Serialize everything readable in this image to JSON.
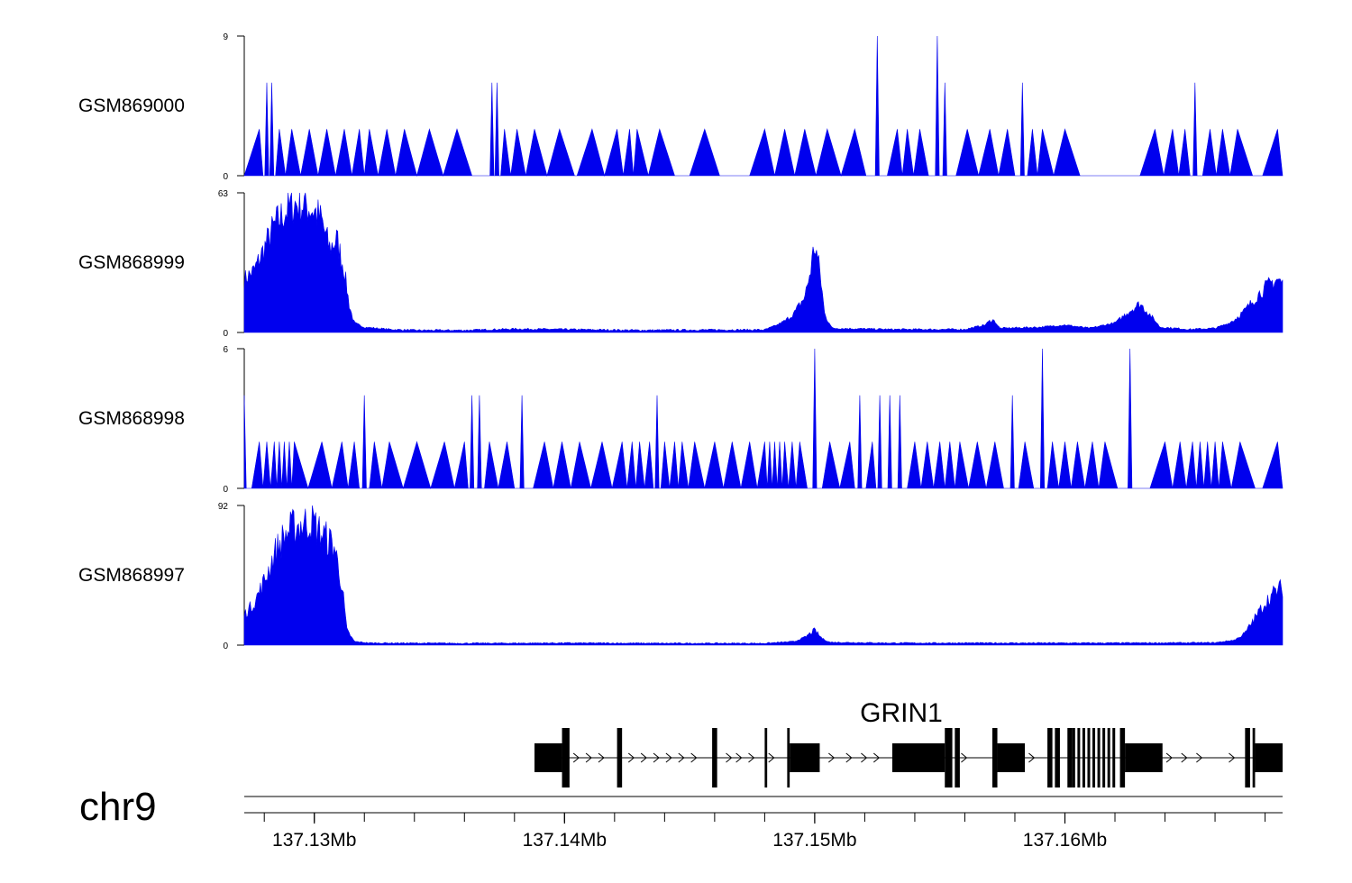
{
  "chart_data": {
    "type": "area",
    "chromosome": "chr9",
    "x_range_mb": [
      137.1272,
      137.1687
    ],
    "genome_axis": {
      "major_ticks_mb": [
        137.13,
        137.14,
        137.15,
        137.16
      ],
      "major_labels": [
        "137.13Mb",
        "137.14Mb",
        "137.15Mb",
        "137.16Mb"
      ],
      "minor_step_mb": 0.002
    },
    "color": "#0000ee",
    "tracks": [
      {
        "name": "GSM869000",
        "ymax_label": "9",
        "ymin_label": "0",
        "ymax": 9,
        "peaks": [
          [
            137.1278,
            3
          ],
          [
            137.1281,
            6
          ],
          [
            137.1283,
            6
          ],
          [
            137.1286,
            3
          ],
          [
            137.1291,
            3
          ],
          [
            137.1298,
            3
          ],
          [
            137.1305,
            3
          ],
          [
            137.1312,
            3
          ],
          [
            137.1318,
            3
          ],
          [
            137.1322,
            3
          ],
          [
            137.1329,
            3
          ],
          [
            137.1336,
            3
          ],
          [
            137.1346,
            3
          ],
          [
            137.1357,
            3
          ],
          [
            137.1371,
            6
          ],
          [
            137.1373,
            6
          ],
          [
            137.1376,
            3
          ],
          [
            137.1381,
            3
          ],
          [
            137.1388,
            3
          ],
          [
            137.1398,
            3
          ],
          [
            137.1411,
            3
          ],
          [
            137.1421,
            3
          ],
          [
            137.1426,
            3
          ],
          [
            137.1429,
            3
          ],
          [
            137.1438,
            3
          ],
          [
            137.1456,
            3
          ],
          [
            137.148,
            3
          ],
          [
            137.1488,
            3
          ],
          [
            137.1496,
            3
          ],
          [
            137.1505,
            3
          ],
          [
            137.1516,
            3
          ],
          [
            137.1525,
            9
          ],
          [
            137.1533,
            3
          ],
          [
            137.1537,
            3
          ],
          [
            137.1542,
            3
          ],
          [
            137.1549,
            9
          ],
          [
            137.1552,
            6
          ],
          [
            137.1561,
            3
          ],
          [
            137.157,
            3
          ],
          [
            137.1577,
            3
          ],
          [
            137.1583,
            6
          ],
          [
            137.1587,
            3
          ],
          [
            137.1591,
            3
          ],
          [
            137.16,
            3
          ],
          [
            137.1636,
            3
          ],
          [
            137.1643,
            3
          ],
          [
            137.1648,
            3
          ],
          [
            137.1652,
            6
          ],
          [
            137.1658,
            3
          ],
          [
            137.1663,
            3
          ],
          [
            137.1669,
            3
          ],
          [
            137.1685,
            3
          ]
        ],
        "hw": 0.0006
      },
      {
        "name": "GSM868999",
        "ymax_label": "63",
        "ymin_label": "0",
        "ymax": 63,
        "dense": true,
        "base": [
          [
            137.1272,
            24
          ],
          [
            137.1276,
            28
          ],
          [
            137.128,
            38
          ],
          [
            137.1284,
            48
          ],
          [
            137.1288,
            54
          ],
          [
            137.1292,
            58
          ],
          [
            137.1296,
            58
          ],
          [
            137.13,
            55
          ],
          [
            137.1303,
            50
          ],
          [
            137.1306,
            38
          ],
          [
            137.1309,
            42
          ],
          [
            137.1312,
            28
          ],
          [
            137.1314,
            12
          ],
          [
            137.1316,
            4
          ],
          [
            137.132,
            2
          ],
          [
            137.133,
            1
          ],
          [
            137.134,
            0.6
          ],
          [
            137.136,
            0.6
          ],
          [
            137.138,
            1.2
          ],
          [
            137.14,
            1
          ],
          [
            137.143,
            0.6
          ],
          [
            137.146,
            0.8
          ],
          [
            137.148,
            0.8
          ],
          [
            137.1485,
            3
          ],
          [
            137.1488,
            5
          ],
          [
            137.1492,
            9
          ],
          [
            137.1496,
            16
          ],
          [
            137.1498,
            26
          ],
          [
            137.15,
            40
          ],
          [
            137.1502,
            28
          ],
          [
            137.1504,
            8
          ],
          [
            137.1507,
            1.5
          ],
          [
            137.153,
            1
          ],
          [
            137.156,
            1
          ],
          [
            137.1568,
            3
          ],
          [
            137.1571,
            6
          ],
          [
            137.1574,
            1.5
          ],
          [
            137.159,
            2
          ],
          [
            137.16,
            3
          ],
          [
            137.161,
            1.5
          ],
          [
            137.162,
            4
          ],
          [
            137.1625,
            9
          ],
          [
            137.163,
            13
          ],
          [
            137.1634,
            8
          ],
          [
            137.1638,
            2
          ],
          [
            137.165,
            1
          ],
          [
            137.166,
            1.5
          ],
          [
            137.1666,
            4
          ],
          [
            137.1672,
            10
          ],
          [
            137.1678,
            18
          ],
          [
            137.1682,
            22
          ],
          [
            137.1685,
            24
          ],
          [
            137.1687,
            22
          ]
        ]
      },
      {
        "name": "GSM868998",
        "ymax_label": "6",
        "ymin_label": "0",
        "ymax": 6,
        "peaks": [
          [
            137.1272,
            4
          ],
          [
            137.1278,
            2
          ],
          [
            137.1281,
            2
          ],
          [
            137.1284,
            2
          ],
          [
            137.1286,
            2
          ],
          [
            137.1288,
            2
          ],
          [
            137.129,
            2
          ],
          [
            137.1292,
            2
          ],
          [
            137.1303,
            2
          ],
          [
            137.1311,
            2
          ],
          [
            137.1316,
            2
          ],
          [
            137.132,
            4
          ],
          [
            137.1324,
            2
          ],
          [
            137.133,
            2
          ],
          [
            137.1341,
            2
          ],
          [
            137.1352,
            2
          ],
          [
            137.136,
            2
          ],
          [
            137.1363,
            4
          ],
          [
            137.1366,
            4
          ],
          [
            137.137,
            2
          ],
          [
            137.1377,
            2
          ],
          [
            137.1383,
            4
          ],
          [
            137.1392,
            2
          ],
          [
            137.1399,
            2
          ],
          [
            137.1406,
            2
          ],
          [
            137.1415,
            2
          ],
          [
            137.1423,
            2
          ],
          [
            137.1427,
            2
          ],
          [
            137.143,
            2
          ],
          [
            137.1434,
            2
          ],
          [
            137.1437,
            4
          ],
          [
            137.144,
            2
          ],
          [
            137.1444,
            2
          ],
          [
            137.1447,
            2
          ],
          [
            137.1452,
            2
          ],
          [
            137.146,
            2
          ],
          [
            137.1467,
            2
          ],
          [
            137.1474,
            2
          ],
          [
            137.148,
            2
          ],
          [
            137.1482,
            2
          ],
          [
            137.1484,
            2
          ],
          [
            137.1486,
            2
          ],
          [
            137.1488,
            2
          ],
          [
            137.1491,
            2
          ],
          [
            137.1494,
            2
          ],
          [
            137.15,
            6
          ],
          [
            137.1506,
            2
          ],
          [
            137.1514,
            2
          ],
          [
            137.1518,
            4
          ],
          [
            137.1523,
            2
          ],
          [
            137.1526,
            4
          ],
          [
            137.153,
            4
          ],
          [
            137.1534,
            4
          ],
          [
            137.154,
            2
          ],
          [
            137.1545,
            2
          ],
          [
            137.155,
            2
          ],
          [
            137.1554,
            2
          ],
          [
            137.1558,
            2
          ],
          [
            137.1565,
            2
          ],
          [
            137.1572,
            2
          ],
          [
            137.1579,
            4
          ],
          [
            137.1584,
            2
          ],
          [
            137.1591,
            6
          ],
          [
            137.1595,
            2
          ],
          [
            137.16,
            2
          ],
          [
            137.1605,
            2
          ],
          [
            137.1611,
            2
          ],
          [
            137.1616,
            2
          ],
          [
            137.1626,
            6
          ],
          [
            137.164,
            2
          ],
          [
            137.1646,
            2
          ],
          [
            137.1651,
            2
          ],
          [
            137.1654,
            2
          ],
          [
            137.1657,
            2
          ],
          [
            137.166,
            2
          ],
          [
            137.1663,
            2
          ],
          [
            137.167,
            2
          ],
          [
            137.1685,
            2
          ]
        ],
        "hw": 0.0006
      },
      {
        "name": "GSM868997",
        "ymax_label": "92",
        "ymin_label": "0",
        "ymax": 92,
        "dense": true,
        "base": [
          [
            137.1272,
            20
          ],
          [
            137.1276,
            28
          ],
          [
            137.128,
            42
          ],
          [
            137.1284,
            60
          ],
          [
            137.1288,
            72
          ],
          [
            137.1292,
            78
          ],
          [
            137.1296,
            80
          ],
          [
            137.1299,
            82
          ],
          [
            137.1302,
            75
          ],
          [
            137.1305,
            70
          ],
          [
            137.1308,
            65
          ],
          [
            137.1311,
            40
          ],
          [
            137.1313,
            10
          ],
          [
            137.1316,
            2
          ],
          [
            137.1322,
            1
          ],
          [
            137.136,
            0.8
          ],
          [
            137.14,
            1
          ],
          [
            137.144,
            0.8
          ],
          [
            137.148,
            0.8
          ],
          [
            137.1492,
            2
          ],
          [
            137.1496,
            5
          ],
          [
            137.15,
            10
          ],
          [
            137.1503,
            4
          ],
          [
            137.1506,
            1.5
          ],
          [
            137.153,
            1
          ],
          [
            137.158,
            1
          ],
          [
            137.162,
            1
          ],
          [
            137.166,
            1.2
          ],
          [
            137.1668,
            3
          ],
          [
            137.1672,
            8
          ],
          [
            137.1676,
            18
          ],
          [
            137.168,
            28
          ],
          [
            137.1684,
            35
          ],
          [
            137.1687,
            38
          ]
        ]
      }
    ],
    "gene": {
      "name": "GRIN1",
      "start_mb": 137.1388,
      "end_mb": 137.1687,
      "strand": "+",
      "exons": [
        [
          137.1388,
          137.1399,
          "utr"
        ],
        [
          137.1399,
          137.1402,
          "cds"
        ],
        [
          137.1421,
          137.1423,
          "cds"
        ],
        [
          137.1459,
          137.1461,
          "cds"
        ],
        [
          137.148,
          137.1481,
          "cds"
        ],
        [
          137.1489,
          137.149,
          "cds"
        ],
        [
          137.149,
          137.1502,
          "utr"
        ],
        [
          137.1531,
          137.1552,
          "utr"
        ],
        [
          137.1552,
          137.1555,
          "cds"
        ],
        [
          137.1556,
          137.1558,
          "cds"
        ],
        [
          137.1571,
          137.1573,
          "cds"
        ],
        [
          137.1573,
          137.1584,
          "utr"
        ],
        [
          137.1593,
          137.1595,
          "cds"
        ],
        [
          137.1596,
          137.1598,
          "cds"
        ],
        [
          137.1601,
          137.1603,
          "cds"
        ],
        [
          137.1603,
          137.1621,
          "exongroup"
        ],
        [
          137.1622,
          137.1624,
          "cds"
        ],
        [
          137.1624,
          137.1639,
          "utr"
        ],
        [
          137.1672,
          137.1674,
          "cds"
        ],
        [
          137.1675,
          137.1676,
          "cds"
        ],
        [
          137.1676,
          137.1687,
          "utr"
        ]
      ],
      "arrows_mb": [
        137.1405,
        137.141,
        137.1415,
        137.1427,
        137.1432,
        137.1437,
        137.1442,
        137.1447,
        137.1452,
        137.1466,
        137.147,
        137.1475,
        137.1483,
        137.1507,
        137.1514,
        137.152,
        137.1525,
        137.156,
        137.1576,
        137.1587,
        137.1642,
        137.1648,
        137.1654,
        137.1667
      ]
    }
  }
}
